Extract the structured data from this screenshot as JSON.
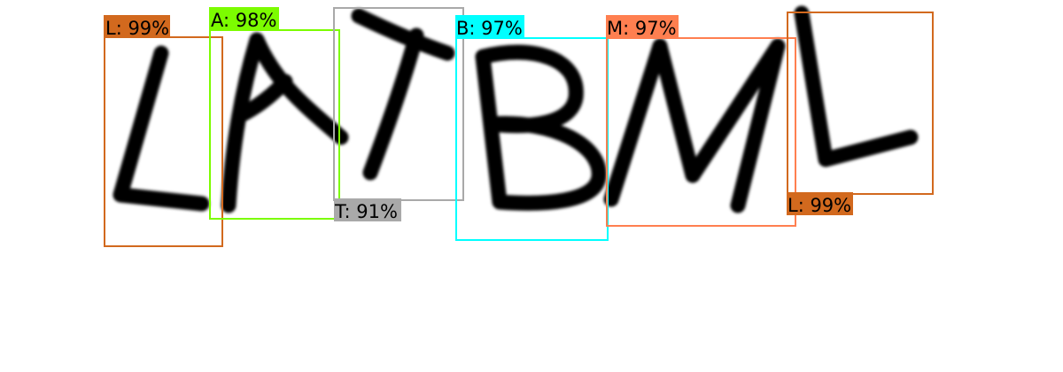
{
  "detections": [
    {
      "letter": "L",
      "label": "L: 99%",
      "color": "#d2691e"
    },
    {
      "letter": "A",
      "label": "A: 98%",
      "color": "#7cfc00"
    },
    {
      "letter": "T",
      "label": "T: 91%",
      "color": "#a9a9a9"
    },
    {
      "letter": "B",
      "label": "B: 97%",
      "color": "#00ffff"
    },
    {
      "letter": "M",
      "label": "M: 97%",
      "color": "#ff7f50"
    },
    {
      "letter": "L",
      "label": "L: 99%",
      "color": "#d2691e"
    }
  ]
}
